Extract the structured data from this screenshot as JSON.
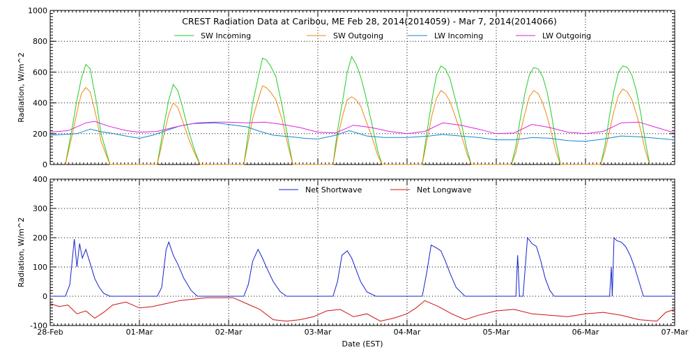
{
  "title": "CREST Radiation Data at Caribou, ME   Feb 28, 2014(2014059) - Mar  7, 2014(2014066)",
  "xlabel": "Date (EST)",
  "colors": {
    "sw_in": "#22cc22",
    "sw_out": "#ee8811",
    "lw_in": "#1188cc",
    "lw_out": "#dd22dd",
    "net_sw": "#1122cc",
    "net_lw": "#cc1111"
  },
  "chart_data": [
    {
      "type": "line",
      "ylabel": "Radiation,  W/m^2",
      "ylim": [
        0,
        1000
      ],
      "yticks": [
        "0",
        "200",
        "400",
        "600",
        "800",
        "1000"
      ],
      "xlim": [
        0,
        7
      ],
      "xticks": [
        "28-Feb",
        "01-Mar",
        "02-Mar",
        "03-Mar",
        "04-Mar",
        "05-Mar",
        "06-Mar",
        "07-Mar"
      ],
      "grid": true,
      "legend_position": "top",
      "series": [
        {
          "name": "SW Incoming",
          "x": [
            0.17,
            0.25,
            0.3,
            0.35,
            0.4,
            0.45,
            0.48,
            0.52,
            0.57,
            0.63,
            0.67,
            1.2,
            1.27,
            1.33,
            1.38,
            1.43,
            1.48,
            1.55,
            1.62,
            1.68,
            2.17,
            2.22,
            2.27,
            2.33,
            2.38,
            2.42,
            2.47,
            2.53,
            2.6,
            2.67,
            2.72,
            3.17,
            3.22,
            3.28,
            3.33,
            3.38,
            3.43,
            3.48,
            3.53,
            3.6,
            3.67,
            3.72,
            4.17,
            4.22,
            4.28,
            4.33,
            4.38,
            4.43,
            4.48,
            4.53,
            4.6,
            4.67,
            4.72,
            5.17,
            5.22,
            5.27,
            5.32,
            5.37,
            5.42,
            5.47,
            5.52,
            5.57,
            5.62,
            5.67,
            5.72,
            6.17,
            6.22,
            6.27,
            6.32,
            6.37,
            6.42,
            6.47,
            6.52,
            6.57,
            6.62,
            6.67,
            6.72
          ],
          "y": [
            0,
            250,
            420,
            560,
            650,
            620,
            520,
            400,
            200,
            80,
            0,
            0,
            240,
            420,
            520,
            480,
            380,
            220,
            90,
            0,
            0,
            200,
            400,
            560,
            690,
            680,
            640,
            570,
            380,
            150,
            0,
            0,
            220,
            420,
            600,
            700,
            650,
            570,
            460,
            280,
            90,
            0,
            0,
            200,
            420,
            580,
            640,
            620,
            560,
            450,
            290,
            100,
            0,
            0,
            120,
            300,
            460,
            580,
            630,
            620,
            570,
            470,
            320,
            140,
            0,
            0,
            130,
            320,
            480,
            600,
            640,
            630,
            580,
            480,
            330,
            150,
            0
          ]
        },
        {
          "name": "SW Outgoing",
          "x": [
            0.17,
            0.25,
            0.3,
            0.35,
            0.4,
            0.45,
            0.48,
            0.52,
            0.57,
            0.63,
            0.67,
            1.2,
            1.27,
            1.33,
            1.38,
            1.43,
            1.48,
            1.55,
            1.62,
            1.68,
            2.17,
            2.22,
            2.27,
            2.33,
            2.38,
            2.42,
            2.47,
            2.53,
            2.6,
            2.67,
            2.72,
            3.17,
            3.22,
            3.28,
            3.33,
            3.38,
            3.43,
            3.48,
            3.53,
            3.6,
            3.67,
            3.72,
            4.17,
            4.22,
            4.28,
            4.33,
            4.38,
            4.43,
            4.48,
            4.53,
            4.6,
            4.67,
            4.72,
            5.17,
            5.22,
            5.27,
            5.32,
            5.37,
            5.42,
            5.47,
            5.52,
            5.57,
            5.62,
            5.67,
            5.72,
            6.17,
            6.22,
            6.27,
            6.32,
            6.37,
            6.42,
            6.47,
            6.52,
            6.57,
            6.62,
            6.67,
            6.72
          ],
          "y": [
            0,
            200,
            340,
            460,
            500,
            470,
            400,
            300,
            150,
            60,
            0,
            0,
            180,
            330,
            400,
            370,
            290,
            170,
            70,
            0,
            0,
            150,
            300,
            420,
            510,
            500,
            470,
            420,
            290,
            110,
            0,
            0,
            170,
            320,
            420,
            440,
            420,
            380,
            300,
            190,
            60,
            0,
            0,
            150,
            320,
            430,
            480,
            460,
            410,
            330,
            210,
            70,
            0,
            0,
            80,
            210,
            330,
            440,
            480,
            460,
            400,
            310,
            200,
            80,
            0,
            0,
            90,
            220,
            350,
            450,
            490,
            470,
            420,
            330,
            220,
            90,
            0
          ]
        },
        {
          "name": "LW Incoming",
          "x": [
            0,
            0.3,
            0.45,
            0.55,
            0.67,
            0.85,
            1.0,
            1.15,
            1.3,
            1.45,
            1.6,
            1.85,
            2.0,
            2.2,
            2.35,
            2.5,
            2.7,
            2.85,
            3.0,
            3.2,
            3.35,
            3.55,
            3.75,
            4.0,
            4.25,
            4.4,
            4.6,
            4.8,
            5.0,
            5.2,
            5.4,
            5.6,
            5.8,
            6.0,
            6.2,
            6.4,
            6.6,
            6.8,
            7.0
          ],
          "y": [
            190,
            200,
            230,
            215,
            205,
            185,
            170,
            190,
            220,
            250,
            265,
            270,
            260,
            245,
            215,
            190,
            180,
            170,
            165,
            190,
            220,
            185,
            175,
            175,
            185,
            195,
            185,
            175,
            160,
            160,
            175,
            170,
            155,
            150,
            165,
            185,
            180,
            170,
            160
          ]
        },
        {
          "name": "LW Outgoing",
          "x": [
            0,
            0.2,
            0.4,
            0.5,
            0.65,
            0.85,
            1.0,
            1.2,
            1.45,
            1.65,
            1.85,
            2.0,
            2.2,
            2.4,
            2.6,
            2.8,
            3.0,
            3.2,
            3.4,
            3.6,
            3.8,
            4.0,
            4.2,
            4.4,
            4.6,
            4.8,
            5.0,
            5.2,
            5.4,
            5.6,
            5.8,
            6.0,
            6.2,
            6.4,
            6.6,
            6.8,
            7.0
          ],
          "y": [
            210,
            220,
            270,
            280,
            250,
            220,
            210,
            215,
            250,
            270,
            275,
            275,
            270,
            275,
            260,
            240,
            210,
            205,
            255,
            240,
            215,
            200,
            215,
            270,
            255,
            230,
            200,
            205,
            260,
            240,
            210,
            200,
            215,
            270,
            275,
            240,
            205
          ]
        }
      ]
    },
    {
      "type": "line",
      "ylabel": "Radiation,  W/m^2",
      "ylim": [
        -100,
        400
      ],
      "yticks": [
        "-100",
        "0",
        "100",
        "200",
        "300",
        "400"
      ],
      "xlim": [
        0,
        7
      ],
      "xticks": [
        "28-Feb",
        "01-Mar",
        "02-Mar",
        "03-Mar",
        "04-Mar",
        "05-Mar",
        "06-Mar",
        "07-Mar"
      ],
      "grid": true,
      "legend_position": "top",
      "series": [
        {
          "name": "Net Shortwave",
          "x": [
            0,
            0.17,
            0.22,
            0.27,
            0.3,
            0.33,
            0.36,
            0.4,
            0.45,
            0.5,
            0.55,
            0.6,
            0.67,
            1.0,
            1.2,
            1.25,
            1.3,
            1.33,
            1.38,
            1.43,
            1.5,
            1.58,
            1.65,
            2.0,
            2.17,
            2.22,
            2.27,
            2.33,
            2.38,
            2.43,
            2.5,
            2.58,
            2.65,
            3.0,
            3.17,
            3.22,
            3.27,
            3.33,
            3.38,
            3.43,
            3.48,
            3.55,
            3.65,
            4.0,
            4.17,
            4.22,
            4.27,
            4.33,
            4.38,
            4.43,
            4.48,
            4.55,
            4.65,
            5.0,
            5.22,
            5.24,
            5.26,
            5.28,
            5.3,
            5.35,
            5.4,
            5.45,
            5.5,
            5.55,
            5.6,
            5.65,
            6.0,
            6.27,
            6.29,
            6.3,
            6.32,
            6.35,
            6.4,
            6.45,
            6.5,
            6.55,
            6.6,
            6.65,
            7.0
          ],
          "y": [
            0,
            0,
            40,
            195,
            100,
            180,
            130,
            160,
            110,
            60,
            30,
            10,
            0,
            0,
            0,
            30,
            160,
            185,
            140,
            110,
            60,
            20,
            0,
            0,
            0,
            40,
            120,
            160,
            130,
            95,
            50,
            15,
            0,
            0,
            0,
            50,
            140,
            155,
            130,
            90,
            50,
            15,
            0,
            0,
            0,
            80,
            175,
            165,
            155,
            120,
            80,
            30,
            0,
            0,
            0,
            140,
            0,
            0,
            0,
            200,
            180,
            170,
            120,
            60,
            20,
            0,
            0,
            0,
            100,
            0,
            200,
            190,
            185,
            170,
            140,
            100,
            50,
            0,
            0
          ]
        },
        {
          "name": "Net Longwave",
          "x": [
            0,
            0.1,
            0.2,
            0.3,
            0.4,
            0.5,
            0.6,
            0.7,
            0.85,
            1.0,
            1.15,
            1.3,
            1.45,
            1.6,
            1.75,
            1.9,
            2.05,
            2.2,
            2.35,
            2.5,
            2.65,
            2.8,
            2.95,
            3.1,
            3.25,
            3.4,
            3.55,
            3.7,
            3.85,
            4.0,
            4.1,
            4.2,
            4.35,
            4.5,
            4.65,
            4.8,
            5.0,
            5.2,
            5.4,
            5.6,
            5.8,
            6.0,
            6.2,
            6.4,
            6.6,
            6.8,
            6.9,
            7.0
          ],
          "y": [
            -25,
            -35,
            -30,
            -60,
            -50,
            -75,
            -55,
            -30,
            -20,
            -40,
            -35,
            -25,
            -15,
            -10,
            -5,
            -5,
            -5,
            -25,
            -45,
            -80,
            -85,
            -80,
            -70,
            -50,
            -45,
            -70,
            -60,
            -85,
            -75,
            -60,
            -40,
            -15,
            -35,
            -60,
            -80,
            -65,
            -50,
            -45,
            -60,
            -65,
            -70,
            -60,
            -55,
            -65,
            -80,
            -85,
            -55,
            -45
          ]
        }
      ]
    }
  ]
}
